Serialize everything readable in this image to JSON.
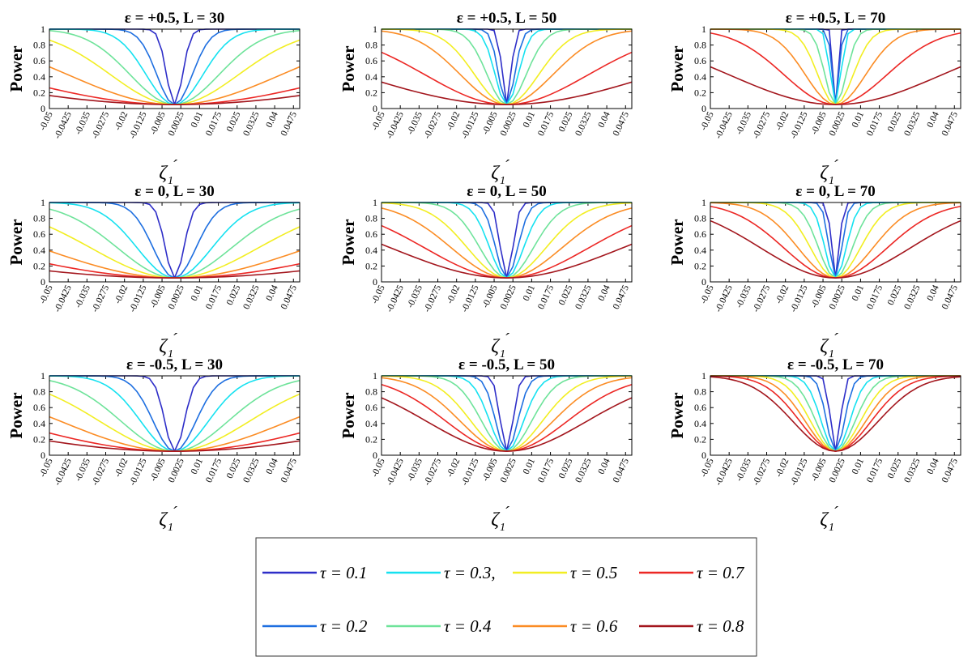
{
  "chart_data": {
    "type": "line",
    "layout": "3x3 grid",
    "ylabel": "Power",
    "xlabel": "ζ1´",
    "xlabel_main": "ζ",
    "xlabel_sub": "1",
    "xlabel_prime": "´",
    "ylim": [
      0,
      1
    ],
    "yticks": [
      "0",
      "0.2",
      "0.4",
      "0.6",
      "0.8",
      "1"
    ],
    "xlim": [
      -0.05,
      0.05
    ],
    "xticks": [
      "-0.05",
      "-0.0425",
      "-0.035",
      "-0.0275",
      "-0.02",
      "-0.0125",
      "-0.005",
      "0.0025",
      "0.01",
      "0.0175",
      "0.025",
      "0.0325",
      "0.04",
      "0.0475"
    ],
    "series": [
      {
        "name": "τ = 0.1",
        "color": "#2e2ec8"
      },
      {
        "name": "τ = 0.2",
        "color": "#1e6fe0"
      },
      {
        "name": "τ = 0.3,",
        "color": "#15e1f0"
      },
      {
        "name": "τ = 0.4",
        "color": "#6ee39a"
      },
      {
        "name": "τ = 0.5",
        "color": "#f2ee22"
      },
      {
        "name": "τ = 0.6",
        "color": "#fb8c24"
      },
      {
        "name": "τ = 0.7",
        "color": "#ec2724"
      },
      {
        "name": "τ = 0.8",
        "color": "#a3161d"
      }
    ],
    "base_power": 0.05,
    "curve_model": "power(x) = 0.05 + 0.95*(1 - exp(-(x/w)^2)), w = half-width in data units (estimated per panel and series)",
    "panels": [
      {
        "title": "ε = +0.5, L = 30",
        "widths": [
          0.0045,
          0.01,
          0.016,
          0.025,
          0.036,
          0.06,
          0.1,
          0.14
        ]
      },
      {
        "title": "ε = +0.5, L = 50",
        "widths": [
          0.0025,
          0.0045,
          0.0065,
          0.011,
          0.018,
          0.026,
          0.046,
          0.084
        ]
      },
      {
        "title": "ε = +0.5, L = 70",
        "widths": [
          0.0012,
          0.002,
          0.003,
          0.006,
          0.01,
          0.017,
          0.029,
          0.06
        ]
      },
      {
        "title": "ε = 0, L = 30",
        "widths": [
          0.0052,
          0.012,
          0.021,
          0.032,
          0.047,
          0.075,
          0.11,
          0.16
        ]
      },
      {
        "title": "ε = 0, L = 50",
        "widths": [
          0.0035,
          0.0062,
          0.0095,
          0.015,
          0.022,
          0.031,
          0.046,
          0.065
        ]
      },
      {
        "title": "ε = 0, L = 70",
        "widths": [
          0.0022,
          0.0035,
          0.006,
          0.0095,
          0.014,
          0.021,
          0.029,
          0.042
        ]
      },
      {
        "title": "ε = -0.5, L = 30",
        "widths": [
          0.0055,
          0.012,
          0.019,
          0.03,
          0.042,
          0.064,
          0.095,
          0.13
        ]
      },
      {
        "title": "ε = -0.5, L = 50",
        "widths": [
          0.0035,
          0.0062,
          0.0095,
          0.014,
          0.02,
          0.026,
          0.034,
          0.045
        ]
      },
      {
        "title": "ε = -0.5, L = 70",
        "widths": [
          0.0028,
          0.005,
          0.008,
          0.011,
          0.014,
          0.017,
          0.02,
          0.024
        ]
      }
    ]
  }
}
